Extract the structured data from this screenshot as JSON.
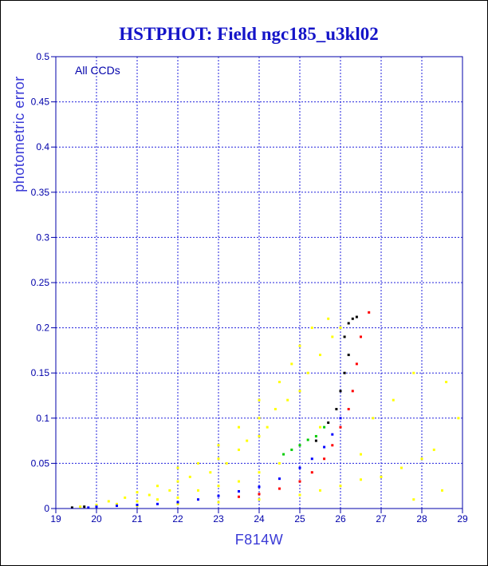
{
  "chart_data": {
    "type": "scatter",
    "title": "HSTPHOT: Field ngc185_u3kl02",
    "xlabel": "F814W",
    "ylabel": "photometric error",
    "annotation": "All CCDs",
    "xlim": [
      19,
      29
    ],
    "ylim": [
      0,
      0.5
    ],
    "x_ticks": [
      "19",
      "20",
      "21",
      "22",
      "23",
      "24",
      "25",
      "26",
      "27",
      "28",
      "29"
    ],
    "y_ticks": [
      "0",
      "0.05",
      "0.1",
      "0.15",
      "0.2",
      "0.25",
      "0.3",
      "0.35",
      "0.4",
      "0.45",
      "0.5"
    ],
    "grid": true,
    "colors": {
      "title": "#1414c8",
      "axes": "#0000aa",
      "grid": "#2222dd",
      "label": "#3a3ad6"
    },
    "series": [
      {
        "color": "#ffff00",
        "points": [
          [
            19.6,
            0.002
          ],
          [
            20,
            0.004
          ],
          [
            20.3,
            0.008
          ],
          [
            20.5,
            0.005
          ],
          [
            20.7,
            0.012
          ],
          [
            21,
            0.008
          ],
          [
            21,
            0.018
          ],
          [
            21.3,
            0.015
          ],
          [
            21.5,
            0.01
          ],
          [
            21.5,
            0.025
          ],
          [
            21.8,
            0.02
          ],
          [
            22,
            0.012
          ],
          [
            22,
            0.03
          ],
          [
            22,
            0.045
          ],
          [
            22.3,
            0.035
          ],
          [
            22.5,
            0.02
          ],
          [
            22.5,
            0.05
          ],
          [
            22.8,
            0.04
          ],
          [
            23,
            0.025
          ],
          [
            23,
            0.055
          ],
          [
            23,
            0.07
          ],
          [
            23.2,
            0.05
          ],
          [
            23.5,
            0.03
          ],
          [
            23.5,
            0.065
          ],
          [
            23.5,
            0.09
          ],
          [
            23.7,
            0.075
          ],
          [
            24,
            0.04
          ],
          [
            24,
            0.08
          ],
          [
            24,
            0.1
          ],
          [
            24,
            0.12
          ],
          [
            24.2,
            0.09
          ],
          [
            24.4,
            0.11
          ],
          [
            24.5,
            0.05
          ],
          [
            24.5,
            0.14
          ],
          [
            24.7,
            0.12
          ],
          [
            24.8,
            0.16
          ],
          [
            25,
            0.07
          ],
          [
            25,
            0.13
          ],
          [
            25,
            0.18
          ],
          [
            25.2,
            0.15
          ],
          [
            25.3,
            0.2
          ],
          [
            25.5,
            0.09
          ],
          [
            25.5,
            0.17
          ],
          [
            25.7,
            0.21
          ],
          [
            25.8,
            0.19
          ],
          [
            26,
            0.2
          ],
          [
            21,
            0.003
          ],
          [
            22,
            0.005
          ],
          [
            23,
            0.007
          ],
          [
            24,
            0.01
          ],
          [
            25,
            0.015
          ],
          [
            25.5,
            0.02
          ],
          [
            26,
            0.025
          ],
          [
            26.5,
            0.032
          ],
          [
            27,
            0.035
          ],
          [
            27.5,
            0.045
          ],
          [
            28,
            0.055
          ],
          [
            28.3,
            0.065
          ],
          [
            26.8,
            0.1
          ],
          [
            27.3,
            0.12
          ],
          [
            27.8,
            0.15
          ],
          [
            28.6,
            0.14
          ],
          [
            27.8,
            0.01
          ],
          [
            28.5,
            0.02
          ],
          [
            28.9,
            0.1
          ],
          [
            26.5,
            0.06
          ]
        ]
      },
      {
        "color": "#ff0000",
        "points": [
          [
            23.5,
            0.013
          ],
          [
            24,
            0.016
          ],
          [
            24.5,
            0.022
          ],
          [
            25,
            0.03
          ],
          [
            25.3,
            0.04
          ],
          [
            25.6,
            0.055
          ],
          [
            25.8,
            0.07
          ],
          [
            26,
            0.09
          ],
          [
            26.2,
            0.11
          ],
          [
            26.3,
            0.13
          ],
          [
            26.4,
            0.16
          ],
          [
            26.5,
            0.19
          ],
          [
            26.7,
            0.217
          ]
        ]
      },
      {
        "color": "#0000ff",
        "points": [
          [
            19.8,
            0.001
          ],
          [
            20,
            0.002
          ],
          [
            20.5,
            0.003
          ],
          [
            21,
            0.004
          ],
          [
            21.5,
            0.005
          ],
          [
            22,
            0.007
          ],
          [
            22.5,
            0.01
          ],
          [
            23,
            0.014
          ],
          [
            23.5,
            0.019
          ],
          [
            24,
            0.024
          ],
          [
            24.5,
            0.033
          ],
          [
            25,
            0.045
          ],
          [
            25.3,
            0.055
          ],
          [
            25.6,
            0.068
          ],
          [
            25.8,
            0.082
          ],
          [
            26,
            0.1
          ]
        ]
      },
      {
        "color": "#00cc00",
        "points": [
          [
            24.6,
            0.06
          ],
          [
            24.8,
            0.065
          ],
          [
            25,
            0.07
          ],
          [
            25.2,
            0.076
          ],
          [
            25.4,
            0.08
          ],
          [
            25.6,
            0.09
          ]
        ]
      },
      {
        "color": "#000000",
        "points": [
          [
            19.4,
            0.001
          ],
          [
            19.7,
            0.002
          ],
          [
            25.4,
            0.075
          ],
          [
            25.7,
            0.095
          ],
          [
            25.9,
            0.11
          ],
          [
            26,
            0.13
          ],
          [
            26.1,
            0.15
          ],
          [
            26.2,
            0.17
          ],
          [
            26.1,
            0.19
          ],
          [
            26.2,
            0.205
          ],
          [
            26.3,
            0.21
          ],
          [
            26.4,
            0.212
          ]
        ]
      }
    ]
  }
}
